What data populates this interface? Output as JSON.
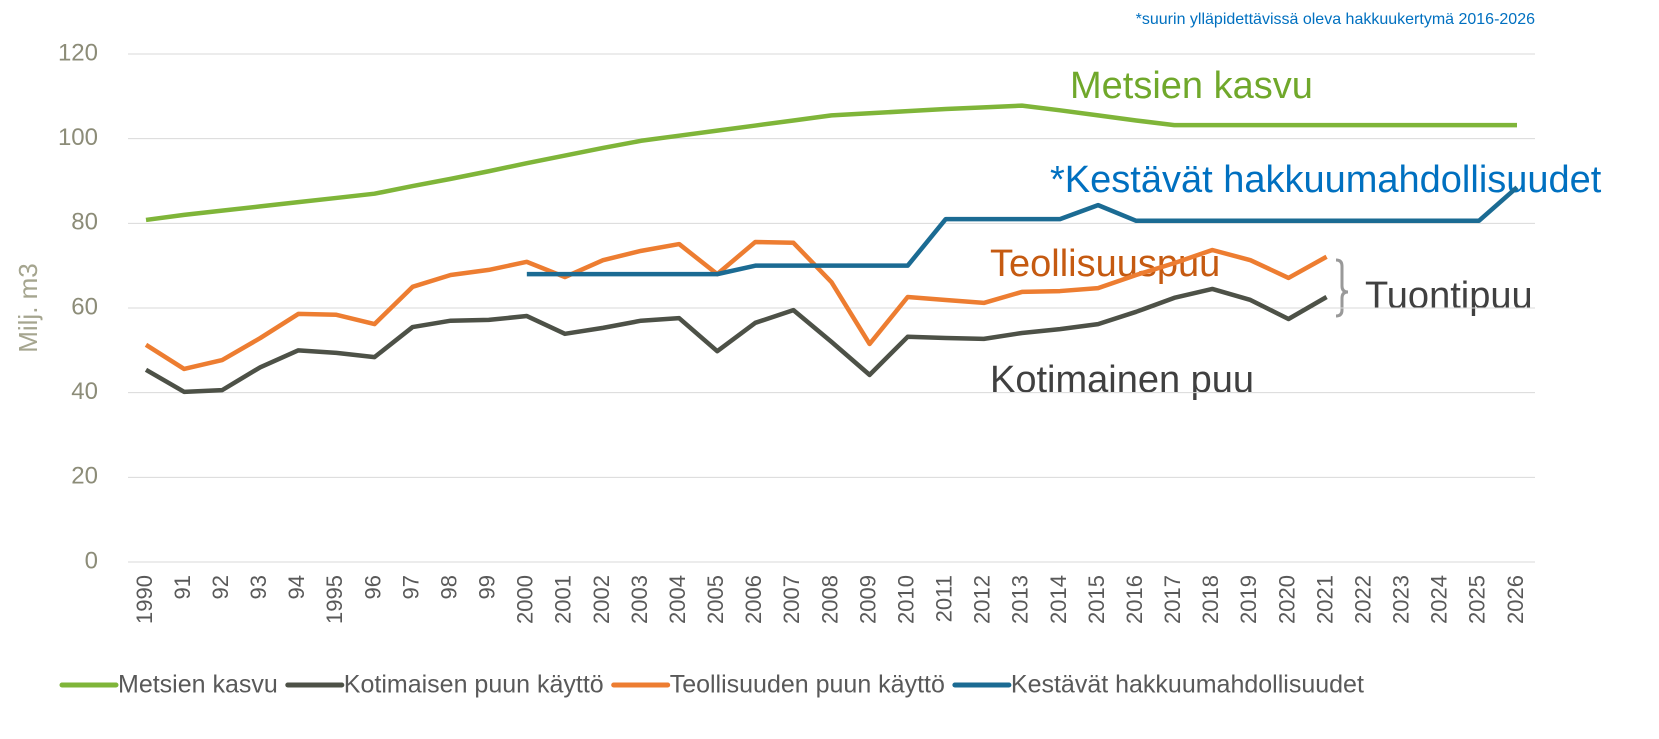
{
  "chart_data": {
    "type": "line",
    "ylabel": "Milj. m3",
    "note": "*suurin ylläpidettävissä oleva hakkuukertymä 2016-2026",
    "annotations": [
      "Metsien kasvu",
      "*Kestävät hakkuumahdollisuudet",
      "Teollisuuspuu",
      "Tuontipuu",
      "Kotimainen puu"
    ],
    "categories": [
      "1990",
      "91",
      "92",
      "93",
      "94",
      "1995",
      "96",
      "97",
      "98",
      "99",
      "2000",
      "2001",
      "2002",
      "2003",
      "2004",
      "2005",
      "2006",
      "2007",
      "2008",
      "2009",
      "2010",
      "2011",
      "2012",
      "2013",
      "2014",
      "2015",
      "2016",
      "2017",
      "2018",
      "2019",
      "2020",
      "2021",
      "2022",
      "2023",
      "2024",
      "2025",
      "2026"
    ],
    "ylim": [
      0,
      120
    ],
    "yticks": [
      0,
      20,
      40,
      60,
      80,
      100,
      120
    ],
    "grid": true,
    "legend": "bottom",
    "series": [
      {
        "name": "Metsien kasvu",
        "color": "#7fb539",
        "values": [
          80.8,
          82,
          83,
          84,
          85,
          86,
          87,
          88.8,
          90.5,
          92.3,
          94.2,
          96,
          97.8,
          99.5,
          100.7,
          101.9,
          103.1,
          104.3,
          105.5,
          106,
          106.5,
          107,
          107.4,
          107.8,
          106.7,
          105.5,
          104.3,
          103.2,
          103.2,
          103.2,
          103.2,
          103.2,
          103.2,
          103.2,
          103.2,
          103.2,
          103.2
        ]
      },
      {
        "name": "Kotimaisen puun käyttö",
        "color": "#4d5147",
        "values": [
          45.4,
          40.2,
          40.6,
          46,
          50,
          49.4,
          48.4,
          55.5,
          57,
          57.2,
          58.1,
          53.9,
          55.3,
          57,
          57.6,
          49.8,
          56.5,
          59.5,
          52,
          44.2,
          53.2,
          52.9,
          52.7,
          54.1,
          55,
          56.2,
          59.1,
          62.4,
          64.5,
          61.9,
          57.4,
          62.6,
          null,
          null,
          null,
          null,
          null
        ]
      },
      {
        "name": "Teollisuuden puun käyttö",
        "color": "#ed7d31",
        "values": [
          51.3,
          45.6,
          47.7,
          52.9,
          58.6,
          58.4,
          56.2,
          65,
          67.8,
          69,
          70.9,
          67.3,
          71.3,
          73.5,
          75.1,
          68,
          75.6,
          75.4,
          66.1,
          51.5,
          62.6,
          61.9,
          61.2,
          63.8,
          64,
          64.7,
          67.8,
          70.6,
          73.7,
          71.3,
          67.1,
          72.1,
          null,
          null,
          null,
          null,
          null
        ]
      },
      {
        "name": "Kestävät hakkuumahdollisuudet",
        "color": "#1b6b93",
        "values": [
          null,
          null,
          null,
          null,
          null,
          null,
          null,
          null,
          null,
          null,
          68,
          68,
          68,
          68,
          68,
          68,
          70,
          70,
          70,
          70,
          70,
          81,
          81,
          81,
          81,
          84.3,
          80.6,
          80.6,
          80.6,
          80.6,
          80.6,
          80.6,
          80.6,
          80.6,
          80.6,
          80.6,
          88.5
        ]
      }
    ]
  }
}
